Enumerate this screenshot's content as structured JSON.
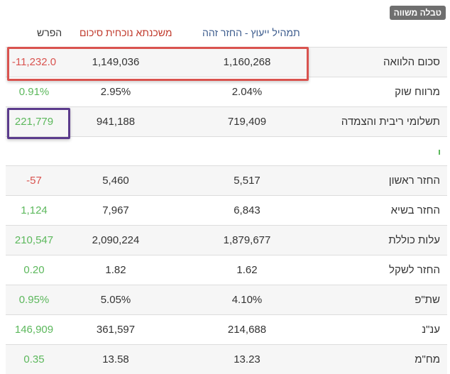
{
  "badge": "טבלה משווה",
  "headers": {
    "diff": "הפרש",
    "current": "משכנתא נוכחית סיכום",
    "advisor": "תמהיל ייעוץ - החזר זהה",
    "colors": {
      "diff": "#333333",
      "current": "#c0392b",
      "advisor": "#3a5a8c"
    }
  },
  "rows_top": [
    {
      "label": "סכום הלוואה",
      "advisor": "1,160,268",
      "current": "1,149,036",
      "diff": "-11,232.0",
      "diff_sign": "neg"
    },
    {
      "label": "מרווח שוק",
      "advisor": "2.04%",
      "current": "2.95%",
      "diff": "0.91%",
      "diff_sign": "pos"
    },
    {
      "label": "תשלומי ריבית והצמדה",
      "advisor": "719,409",
      "current": "941,188",
      "diff": "221,779",
      "diff_sign": "pos"
    }
  ],
  "rows_bottom": [
    {
      "label": "החזר ראשון",
      "advisor": "5,517",
      "current": "5,460",
      "diff": "-57",
      "diff_sign": "neg"
    },
    {
      "label": "החזר בשיא",
      "advisor": "6,843",
      "current": "7,967",
      "diff": "1,124",
      "diff_sign": "pos"
    },
    {
      "label": "עלות כוללת",
      "advisor": "1,879,677",
      "current": "2,090,224",
      "diff": "210,547",
      "diff_sign": "pos"
    },
    {
      "label": "החזר לשקל",
      "advisor": "1.62",
      "current": "1.82",
      "diff": "0.20",
      "diff_sign": "pos"
    },
    {
      "label": "שת\"פ",
      "advisor": "4.10%",
      "current": "5.05%",
      "diff": "0.95%",
      "diff_sign": "pos"
    },
    {
      "label": "ענ\"נ",
      "advisor": "214,688",
      "current": "361,597",
      "diff": "146,909",
      "diff_sign": "pos"
    },
    {
      "label": "מח\"מ",
      "advisor": "13.23",
      "current": "13.58",
      "diff": "0.35",
      "diff_sign": "pos"
    }
  ]
}
